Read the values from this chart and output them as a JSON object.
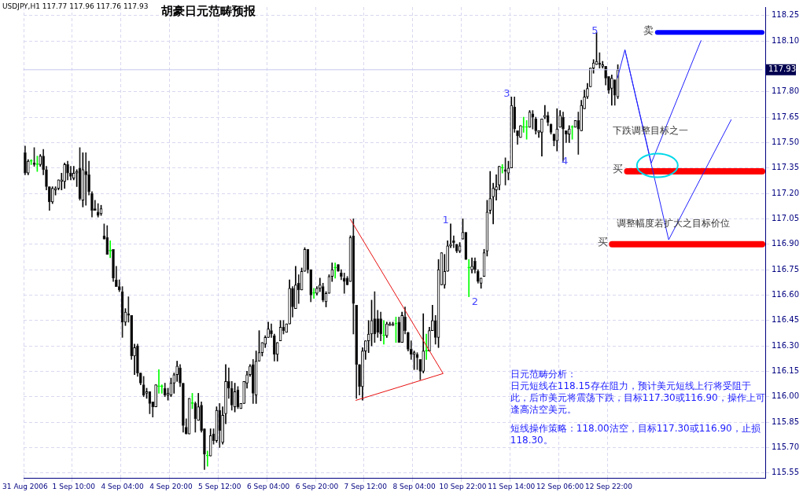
{
  "chart_data": {
    "type": "candlestick",
    "title": "胡豪日元范畴预报",
    "subtitle": "USDJPY,H1 117.77 117.96 117.76 117.93",
    "categories": [
      "31 Aug 2006",
      null,
      null,
      null,
      null,
      null,
      null,
      null,
      null,
      null,
      null,
      null,
      null,
      null,
      null,
      null,
      "1 Sep 10:00",
      null,
      null,
      null,
      null,
      null,
      null,
      null,
      null,
      null,
      null,
      null,
      null,
      null,
      null,
      null,
      "4 Sep 04:00",
      null,
      null,
      null,
      null,
      null,
      null,
      null,
      null,
      null,
      null,
      null,
      null,
      null,
      null,
      null,
      "4 Sep 20:00",
      null,
      null,
      null,
      null,
      null,
      null,
      null,
      null,
      null,
      null,
      null,
      null,
      null,
      null,
      null,
      "5 Sep 12:00",
      null,
      null,
      null,
      null,
      null,
      null,
      null,
      null,
      null,
      null,
      null,
      null,
      null,
      null,
      null,
      "6 Sep 04:00",
      null,
      null,
      null,
      null,
      null,
      null,
      null,
      null,
      null,
      null,
      null,
      null,
      null,
      null,
      null,
      "6 Sep 20:00",
      null,
      null,
      null,
      null,
      null,
      null,
      null,
      null,
      null,
      null,
      null,
      null,
      null,
      null,
      null,
      "7 Sep 12:00",
      null,
      null,
      null,
      null,
      null,
      null,
      null,
      null,
      null,
      null,
      null,
      null,
      null,
      null,
      null,
      "8 Sep 04:00",
      null,
      null,
      null,
      null,
      null,
      null,
      null,
      null,
      null,
      null,
      null,
      null,
      null,
      null,
      null,
      "10 Sep 22:00",
      null,
      null,
      null,
      null,
      null,
      null,
      null,
      null,
      null,
      null,
      null,
      null,
      null,
      null,
      null,
      "11 Sep 14:00",
      null,
      null,
      null,
      null,
      null,
      null,
      null,
      null,
      null,
      null,
      null,
      null,
      null,
      null,
      null,
      "12 Sep 06:00",
      null,
      null,
      null,
      null,
      null,
      null,
      null,
      null,
      null,
      null,
      null,
      null,
      null,
      null,
      null,
      "12 Sep 22:00",
      null,
      null,
      null,
      null,
      null,
      null,
      null,
      null,
      null,
      null,
      null,
      null,
      null,
      null,
      null,
      null,
      null,
      null,
      null,
      null,
      null,
      null,
      null,
      null,
      null,
      null,
      null,
      null,
      null,
      null,
      null,
      null,
      null,
      null,
      null,
      null,
      null,
      null,
      null,
      null,
      null,
      null,
      null,
      null,
      null,
      null,
      null,
      null,
      null,
      null,
      null
    ],
    "ohlc": [
      [
        117.44,
        117.48,
        117.31,
        117.32
      ],
      [
        117.32,
        117.4,
        117.31,
        117.39
      ],
      [
        117.39,
        117.4,
        117.37,
        117.39
      ],
      [
        117.38,
        117.47,
        117.36,
        117.37
      ],
      [
        117.37,
        117.42,
        117.33,
        117.37
      ],
      [
        117.37,
        117.43,
        117.36,
        117.42
      ],
      [
        117.42,
        117.46,
        117.31,
        117.34
      ],
      [
        117.34,
        117.36,
        117.22,
        117.24
      ],
      [
        117.24,
        117.24,
        117.1,
        117.15
      ],
      [
        117.15,
        117.24,
        117.14,
        117.23
      ],
      [
        117.22,
        117.24,
        117.19,
        117.23
      ],
      [
        117.23,
        117.28,
        117.22,
        117.28
      ],
      [
        117.27,
        117.32,
        117.22,
        117.28
      ],
      [
        117.27,
        117.38,
        117.23,
        117.37
      ],
      [
        117.37,
        117.39,
        117.28,
        117.32
      ],
      [
        117.32,
        117.36,
        117.28,
        117.3
      ],
      [
        117.29,
        117.36,
        117.28,
        117.32
      ],
      [
        117.32,
        117.34,
        117.24,
        117.33
      ],
      [
        117.35,
        117.47,
        117.16,
        117.17
      ],
      [
        117.16,
        117.44,
        117.12,
        117.34
      ],
      [
        117.33,
        117.44,
        117.13,
        117.31
      ],
      [
        117.31,
        117.39,
        117.19,
        117.21
      ],
      [
        117.2,
        117.21,
        117.06,
        117.1
      ],
      [
        117.11,
        117.16,
        117.1,
        117.1
      ],
      [
        117.09,
        117.14,
        117.06,
        117.07
      ],
      [
        117.08,
        117.13,
        117.07,
        117.11
      ],
      [
        116.95,
        117.02,
        116.93,
        116.93
      ],
      [
        116.94,
        117.01,
        116.84,
        116.84
      ],
      [
        116.86,
        116.92,
        116.82,
        116.86
      ],
      [
        116.87,
        116.87,
        116.68,
        116.7
      ],
      [
        116.69,
        116.77,
        116.65,
        116.65
      ],
      [
        116.65,
        116.69,
        116.62,
        116.63
      ],
      [
        116.62,
        116.65,
        116.35,
        116.44
      ],
      [
        116.44,
        116.52,
        116.42,
        116.5
      ],
      [
        116.49,
        116.59,
        116.44,
        116.48
      ],
      [
        116.48,
        116.48,
        116.22,
        116.24
      ],
      [
        116.24,
        116.31,
        116.13,
        116.29
      ],
      [
        116.3,
        116.31,
        116.12,
        116.14
      ],
      [
        116.14,
        116.14,
        116.07,
        116.08
      ],
      [
        116.07,
        116.12,
        116,
        116.01
      ],
      [
        116.02,
        116.05,
        115.99,
        116.03
      ],
      [
        116.03,
        116.03,
        115.9,
        115.96
      ],
      [
        115.97,
        115.97,
        115.88,
        115.94
      ],
      [
        115.94,
        116.07,
        115.94,
        116.07
      ],
      [
        116.06,
        116.16,
        116.02,
        116.06
      ],
      [
        116.06,
        116.07,
        116.02,
        116.06
      ],
      [
        116.05,
        116.08,
        116,
        116.01
      ],
      [
        116.01,
        116.05,
        115.98,
        116.02
      ],
      [
        116.01,
        116.11,
        116,
        116.08
      ],
      [
        116.08,
        116.14,
        116.02,
        116.13
      ],
      [
        116.13,
        116.21,
        116.09,
        116.18
      ],
      [
        116.17,
        116.19,
        116.06,
        116.08
      ],
      [
        116.08,
        116.08,
        115.79,
        115.83
      ],
      [
        115.82,
        115.87,
        115.78,
        115.78
      ],
      [
        115.78,
        115.99,
        115.78,
        115.99
      ],
      [
        115.96,
        116.02,
        115.93,
        115.96
      ],
      [
        115.96,
        115.97,
        115.79,
        115.87
      ],
      [
        115.86,
        116.02,
        115.86,
        115.94
      ],
      [
        115.95,
        115.97,
        115.79,
        115.8
      ],
      [
        115.81,
        115.81,
        115.57,
        115.66
      ],
      [
        115.65,
        115.68,
        115.59,
        115.65
      ],
      [
        115.65,
        115.81,
        115.65,
        115.77
      ],
      [
        115.78,
        115.81,
        115.72,
        115.74
      ],
      [
        115.74,
        115.94,
        115.73,
        115.92
      ],
      [
        115.92,
        115.96,
        115.7,
        115.8
      ],
      [
        115.73,
        115.94,
        115.72,
        115.89
      ],
      [
        115.9,
        116.19,
        115.84,
        116.09
      ],
      [
        116.09,
        116.17,
        115.99,
        116.05
      ],
      [
        116.05,
        116.09,
        115.92,
        115.95
      ],
      [
        115.94,
        116.08,
        115.91,
        116.03
      ],
      [
        116.04,
        116.06,
        115.93,
        115.94
      ],
      [
        115.93,
        115.96,
        115.93,
        115.96
      ],
      [
        115.96,
        116.09,
        115.96,
        116.09
      ],
      [
        116.08,
        116.15,
        116.05,
        116.13
      ],
      [
        116.13,
        116.19,
        116.12,
        116.18
      ],
      [
        116.19,
        116.22,
        115.96,
        116.02
      ],
      [
        116.01,
        116.27,
        115.96,
        116.21
      ],
      [
        116.21,
        116.39,
        116.21,
        116.26
      ],
      [
        116.26,
        116.32,
        116.24,
        116.32
      ],
      [
        116.31,
        116.36,
        116.29,
        116.35
      ],
      [
        116.35,
        116.44,
        116.35,
        116.4
      ],
      [
        116.39,
        116.43,
        116.35,
        116.37
      ],
      [
        116.36,
        116.37,
        116.21,
        116.25
      ],
      [
        116.25,
        116.32,
        116.21,
        116.32
      ],
      [
        116.33,
        116.45,
        116.33,
        116.41
      ],
      [
        116.41,
        116.45,
        116.37,
        116.39
      ],
      [
        116.38,
        116.43,
        116.38,
        116.43
      ],
      [
        116.43,
        116.69,
        116.43,
        116.64
      ],
      [
        116.64,
        116.65,
        116.47,
        116.53
      ],
      [
        116.52,
        116.77,
        116.52,
        116.66
      ],
      [
        116.67,
        116.72,
        116.55,
        116.63
      ],
      [
        116.63,
        116.76,
        116.63,
        116.74
      ],
      [
        116.74,
        116.88,
        116.74,
        116.87
      ],
      [
        116.87,
        116.87,
        116.73,
        116.75
      ],
      [
        116.75,
        116.75,
        116.56,
        116.6
      ],
      [
        116.61,
        116.64,
        116.58,
        116.61
      ],
      [
        116.61,
        116.65,
        116.6,
        116.64
      ],
      [
        116.64,
        116.7,
        116.62,
        116.66
      ],
      [
        116.65,
        116.67,
        116.56,
        116.57
      ],
      [
        116.56,
        116.62,
        116.53,
        116.61
      ],
      [
        116.61,
        116.72,
        116.61,
        116.71
      ],
      [
        116.71,
        116.79,
        116.68,
        116.75
      ],
      [
        116.76,
        116.79,
        116.7,
        116.76
      ],
      [
        116.78,
        116.78,
        116.74,
        116.74
      ],
      [
        116.73,
        116.75,
        116.69,
        116.71
      ],
      [
        116.7,
        116.73,
        116.61,
        116.68
      ],
      [
        116.7,
        116.71,
        116.66,
        116.66
      ],
      [
        116.68,
        116.95,
        116.68,
        116.94
      ],
      [
        116.95,
        117.05,
        116.37,
        116.55
      ],
      [
        116.54,
        116.54,
        115.99,
        116.19
      ],
      [
        116.19,
        116.19,
        116.01,
        116.06
      ],
      [
        116.06,
        116.29,
        115.98,
        116.27
      ],
      [
        116.27,
        116.33,
        116.22,
        116.33
      ],
      [
        116.33,
        116.45,
        116.26,
        116.37
      ],
      [
        116.37,
        116.57,
        116.3,
        116.45
      ],
      [
        116.46,
        116.62,
        116.32,
        116.37
      ],
      [
        116.46,
        116.51,
        116.35,
        116.38
      ],
      [
        116.46,
        116.5,
        116.33,
        116.37
      ],
      [
        116.36,
        116.45,
        116.31,
        116.36
      ],
      [
        116.36,
        116.44,
        116.35,
        116.43
      ],
      [
        116.42,
        116.44,
        116.42,
        116.43
      ],
      [
        116.42,
        116.44,
        116.42,
        116.43
      ],
      [
        116.43,
        116.47,
        116.32,
        116.43
      ],
      [
        116.44,
        116.47,
        116.32,
        116.32
      ],
      [
        116.32,
        116.5,
        116.32,
        116.48
      ],
      [
        116.47,
        116.53,
        116.37,
        116.39
      ],
      [
        116.38,
        116.38,
        116.27,
        116.28
      ],
      [
        116.28,
        116.33,
        116.22,
        116.25
      ],
      [
        116.25,
        116.27,
        116.16,
        116.26
      ],
      [
        116.25,
        116.26,
        116.16,
        116.23
      ],
      [
        116.22,
        116.22,
        116.1,
        116.15
      ],
      [
        116.15,
        116.49,
        116.14,
        116.27
      ],
      [
        116.27,
        116.37,
        116.22,
        116.27
      ],
      [
        116.27,
        116.41,
        116.27,
        116.39
      ],
      [
        116.39,
        116.54,
        116.39,
        116.45
      ],
      [
        116.45,
        116.48,
        116.31,
        116.35
      ],
      [
        116.35,
        116.81,
        116.29,
        116.75
      ],
      [
        116.66,
        116.85,
        116.66,
        116.85
      ],
      [
        116.66,
        116.84,
        116.64,
        116.74
      ],
      [
        116.74,
        116.92,
        116.74,
        116.89
      ],
      [
        116.89,
        117.02,
        116.88,
        116.9
      ],
      [
        116.92,
        116.95,
        116.88,
        116.91
      ],
      [
        116.9,
        116.9,
        116.85,
        116.86
      ],
      [
        116.86,
        116.91,
        116.85,
        116.89
      ],
      [
        116.93,
        117.05,
        116.93,
        116.97
      ],
      [
        116.97,
        116.97,
        116.81,
        116.81
      ],
      [
        116.76,
        116.81,
        116.59,
        116.76
      ],
      [
        116.75,
        116.82,
        116.73,
        116.77
      ],
      [
        116.8,
        116.82,
        116.73,
        116.75
      ],
      [
        116.74,
        116.75,
        116.67,
        116.68
      ],
      [
        116.67,
        116.7,
        116.64,
        116.7
      ],
      [
        116.71,
        116.87,
        116.71,
        116.85
      ],
      [
        116.86,
        117.16,
        116.83,
        117.09
      ],
      [
        117.1,
        117.33,
        117.08,
        117.17
      ],
      [
        117.18,
        117.26,
        117.02,
        117.23
      ],
      [
        117.22,
        117.31,
        117.16,
        117.24
      ],
      [
        117.25,
        117.36,
        117.22,
        117.36
      ],
      [
        117.35,
        117.37,
        117.32,
        117.35
      ],
      [
        117.34,
        117.41,
        117.25,
        117.33
      ],
      [
        117.32,
        117.39,
        117.28,
        117.35
      ],
      [
        117.35,
        117.77,
        117.35,
        117.72
      ],
      [
        117.71,
        117.77,
        117.56,
        117.58
      ],
      [
        117.57,
        117.57,
        117.49,
        117.54
      ],
      [
        117.53,
        117.6,
        117.53,
        117.6
      ],
      [
        117.59,
        117.65,
        117.56,
        117.59
      ],
      [
        117.59,
        117.63,
        117.52,
        117.59
      ],
      [
        117.59,
        117.69,
        117.59,
        117.68
      ],
      [
        117.67,
        117.69,
        117.58,
        117.65
      ],
      [
        117.64,
        117.65,
        117.55,
        117.57
      ],
      [
        117.56,
        117.57,
        117.53,
        117.57
      ],
      [
        117.56,
        117.64,
        117.42,
        117.64
      ],
      [
        117.65,
        117.72,
        117.64,
        117.66
      ],
      [
        117.66,
        117.68,
        117.6,
        117.62
      ],
      [
        117.61,
        117.61,
        117.55,
        117.56
      ],
      [
        117.55,
        117.55,
        117.48,
        117.51
      ],
      [
        117.51,
        117.7,
        117.45,
        117.58
      ],
      [
        117.59,
        117.69,
        117.59,
        117.66
      ],
      [
        117.65,
        117.68,
        117.39,
        117.58
      ],
      [
        117.57,
        117.57,
        117.5,
        117.55
      ],
      [
        117.55,
        117.6,
        117.5,
        117.58
      ],
      [
        117.59,
        117.6,
        117.52,
        117.59
      ],
      [
        117.59,
        117.63,
        117.59,
        117.63
      ],
      [
        117.63,
        117.68,
        117.43,
        117.58
      ],
      [
        117.57,
        117.75,
        117.57,
        117.72
      ],
      [
        117.7,
        117.81,
        117.7,
        117.77
      ],
      [
        117.77,
        117.85,
        117.76,
        117.82
      ],
      [
        117.83,
        117.94,
        117.83,
        117.94
      ],
      [
        117.94,
        117.99,
        117.91,
        117.97
      ],
      [
        117.96,
        118.15,
        117.96,
        117.98
      ],
      [
        117.97,
        118.03,
        117.94,
        117.96
      ],
      [
        117.95,
        117.98,
        117.94,
        117.96
      ],
      [
        117.95,
        117.95,
        117.84,
        117.88
      ],
      [
        117.89,
        117.89,
        117.79,
        117.81
      ],
      [
        117.82,
        117.9,
        117.72,
        117.88
      ],
      [
        117.87,
        117.87,
        117.72,
        117.78
      ],
      [
        117.77,
        117.96,
        117.76,
        117.93
      ],
      null,
      null,
      null,
      null,
      null,
      null,
      null,
      null,
      null,
      null,
      null,
      null,
      null,
      null,
      null,
      null,
      null,
      null,
      null,
      null,
      null,
      null,
      null,
      null,
      null,
      null,
      null,
      null,
      null,
      null,
      null,
      null,
      null,
      null,
      null,
      null,
      null,
      null,
      null,
      null,
      null,
      null,
      null,
      null,
      null,
      null,
      null,
      null
    ],
    "ylim": [
      115.52,
      118.3
    ],
    "yticks": [
      115.55,
      {
        "value": 115.7,
        "label": "115.70"
      },
      115.85,
      {
        "value": 116,
        "label": "116.00"
      },
      116.15,
      {
        "value": 116.3,
        "label": "116.30"
      },
      116.45,
      {
        "value": 116.6,
        "label": "116.60"
      },
      116.75,
      {
        "value": 116.9,
        "label": "116.90"
      },
      117.05,
      {
        "value": 117.2,
        "label": "117.20"
      },
      117.35,
      {
        "value": 117.5,
        "label": "117.50"
      },
      117.65,
      {
        "value": 117.8,
        "label": "117.80"
      },
      {
        "value": 118.1,
        "label": "118.10"
      },
      118.25
    ],
    "grid": true,
    "legend": false,
    "ref_lines": [
      {
        "axis": "y",
        "value": 118.15,
        "label": "卖",
        "color": "#0000ff"
      },
      {
        "axis": "y",
        "value": 117.33,
        "label": "买",
        "color": "#ff0000"
      },
      {
        "axis": "y",
        "value": 116.9,
        "label": "买",
        "color": "#ff0000"
      },
      {
        "axis": "y",
        "value": 117.93,
        "label": "117.93",
        "color": "#c8c8f0"
      }
    ],
    "annotations": [
      "1",
      "2",
      "3",
      "4",
      "5",
      "下跌调整目标之一",
      "调整幅度若扩大之目标价位",
      "日元范畴分析：",
      "日元短线在118.15存在阻力，预计美元短线上行将受阻于此，后市美元将震荡下跌，目标117.30或116.90，操作上可逢高沽空美元。",
      "短线操作策略：118.00沽空，目标117.30或116.90，止损118.30。"
    ]
  }
}
